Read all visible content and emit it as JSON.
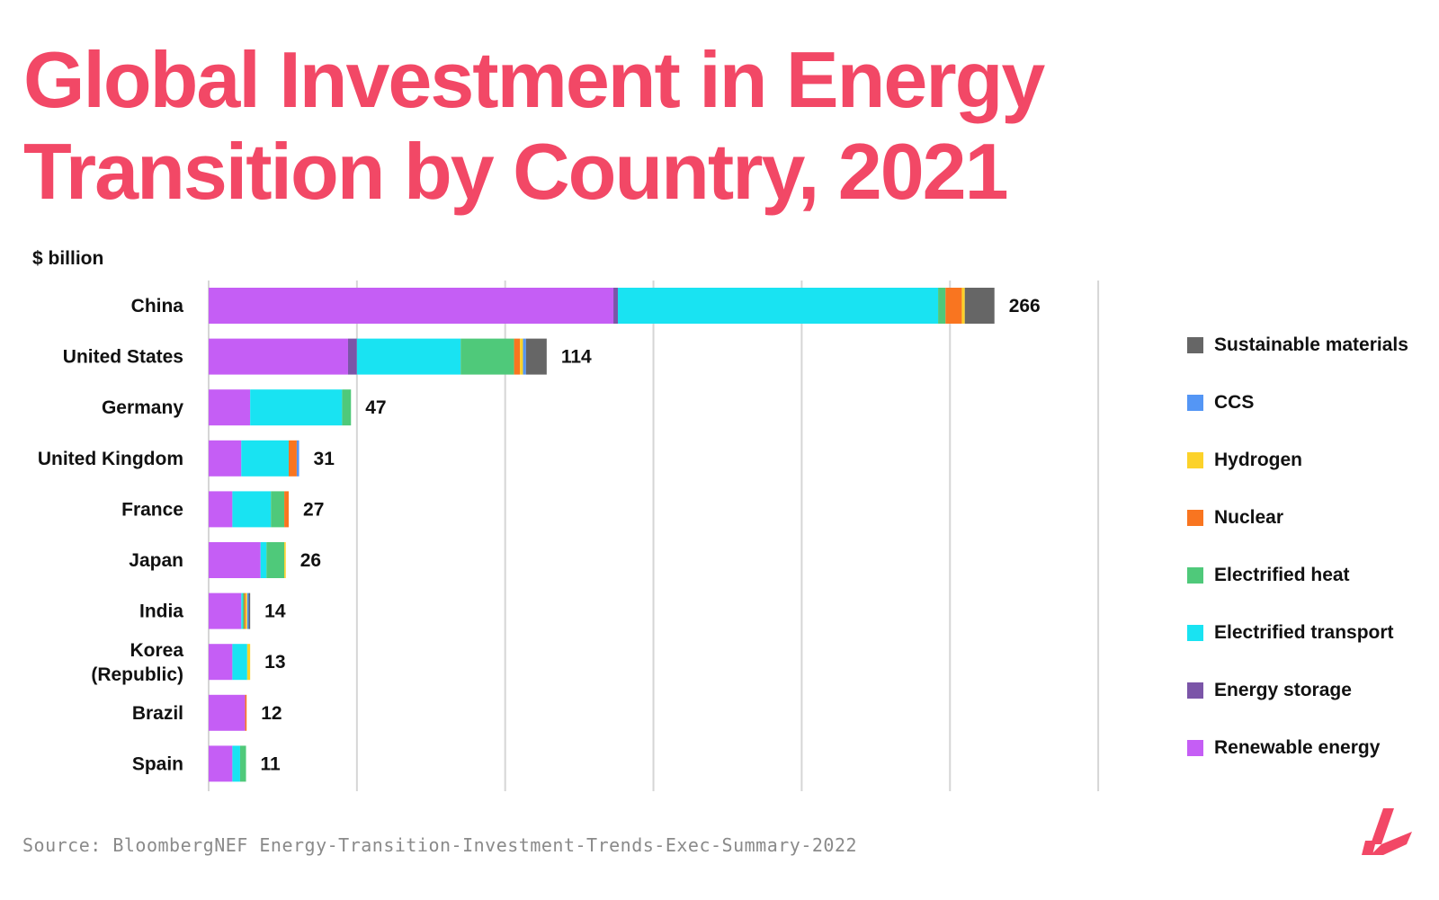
{
  "title": "Global Investment in Energy Transition by Country, 2021",
  "source": "Source: BloombergNEF Energy-Transition-Investment-Trends-Exec-Summary-2022",
  "chart_data": {
    "type": "bar",
    "orientation": "horizontal",
    "stacked": true,
    "title": "Global Investment in Energy Transition by Country, 2021",
    "ylabel": "$ billion",
    "xlim": [
      0,
      300
    ],
    "grid": true,
    "legend_position": "right",
    "categories": [
      "China",
      "United States",
      "Germany",
      "United Kingdom",
      "France",
      "Japan",
      "India",
      "Korea (Republic)",
      "Brazil",
      "Spain"
    ],
    "category_lines": [
      [
        "China"
      ],
      [
        "United States"
      ],
      [
        "Germany"
      ],
      [
        "United Kingdom"
      ],
      [
        "France"
      ],
      [
        "Japan"
      ],
      [
        "India"
      ],
      [
        "Korea",
        "(Republic)"
      ],
      [
        "Brazil"
      ],
      [
        "Spain"
      ]
    ],
    "totals": [
      266,
      114,
      47,
      31,
      27,
      26,
      14,
      13,
      12,
      11
    ],
    "series": [
      {
        "name": "Renewable energy",
        "color": "#c55ef5",
        "values": [
          136.5,
          47,
          14,
          11,
          8,
          17.5,
          11,
          8,
          12.3,
          8
        ]
      },
      {
        "name": "Energy storage",
        "color": "#7b55a8",
        "values": [
          1.5,
          3,
          0,
          0,
          0,
          0,
          0,
          0,
          0,
          0
        ]
      },
      {
        "name": "Electrified transport",
        "color": "#19e3f2",
        "values": [
          108,
          35,
          31,
          16,
          13,
          2,
          0.5,
          5,
          0,
          2.6
        ]
      },
      {
        "name": "Electrified heat",
        "color": "#4fc97a",
        "values": [
          2.5,
          18,
          3,
          0,
          4.5,
          6,
          0.5,
          0,
          0,
          2
        ]
      },
      {
        "name": "Nuclear",
        "color": "#f97520",
        "values": [
          5.5,
          2,
          0,
          2.7,
          1.5,
          0,
          0.5,
          0,
          0.5,
          0
        ]
      },
      {
        "name": "Hydrogen",
        "color": "#fcd22a",
        "values": [
          1,
          1,
          0,
          0,
          0,
          0.5,
          0.5,
          1,
          0,
          0
        ]
      },
      {
        "name": "CCS",
        "color": "#5496f5",
        "values": [
          0,
          1,
          0,
          0.8,
          0,
          0,
          0.5,
          0,
          0,
          0
        ]
      },
      {
        "name": "Sustainable materials",
        "color": "#666666",
        "values": [
          10,
          7,
          0,
          0,
          0,
          0,
          0.5,
          0,
          0,
          0
        ]
      }
    ],
    "legend_order": [
      "Sustainable materials",
      "CCS",
      "Hydrogen",
      "Nuclear",
      "Electrified heat",
      "Electrified transport",
      "Energy storage",
      "Renewable energy"
    ]
  }
}
